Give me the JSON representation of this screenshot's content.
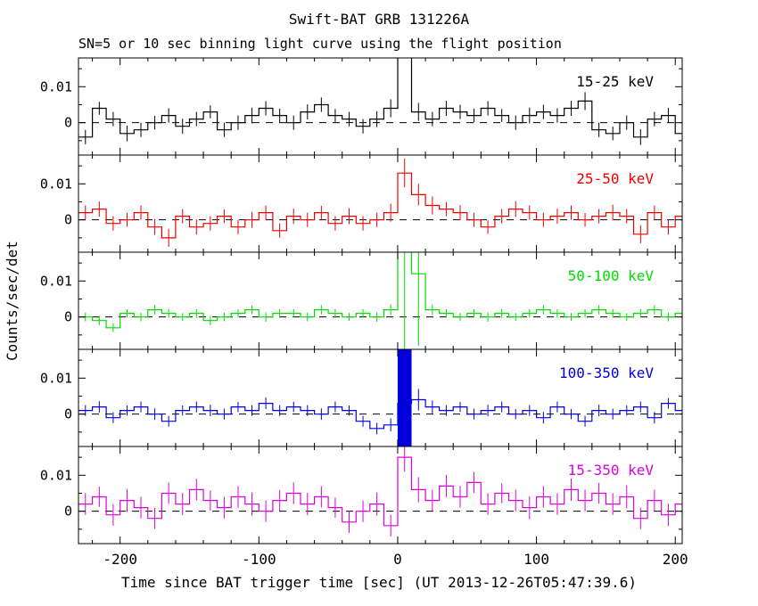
{
  "chart_data": {
    "type": "line",
    "style": "step-histogram light curves with error bars, 5 stacked panels",
    "title": "Swift-BAT GRB 131226A",
    "subtitle": "SN=5 or 10 sec binning light curve using the flight position",
    "xlabel": "Time since BAT trigger time [sec] (UT 2013-12-26T05:47:39.6)",
    "ylabel": "Counts/sec/det",
    "x_start": -230,
    "bin_width": 10,
    "xlim": [
      -230,
      205
    ],
    "ylim": [
      -0.009,
      0.018
    ],
    "x_major_ticks": [
      -200,
      -100,
      0,
      100,
      200
    ],
    "x_tick_labels": [
      "-200",
      "-100",
      "0",
      "100",
      "200"
    ],
    "x_minor_step": 20,
    "y_major_ticks": [
      0,
      0.01
    ],
    "y_tick_labels": [
      "0",
      "0.01"
    ],
    "y_minor_ticks": [
      -0.005,
      0.005,
      0.015
    ],
    "grid": "off",
    "zero_line": "dashed",
    "panels": [
      {
        "label": "15-25 keV",
        "color": "#000000",
        "values": [
          -0.004,
          0.004,
          0.001,
          -0.003,
          -0.002,
          0.0,
          0.002,
          -0.001,
          0.001,
          0.003,
          -0.002,
          0.0,
          0.002,
          0.004,
          0.002,
          0.0,
          0.003,
          0.005,
          0.002,
          0.001,
          -0.001,
          0.001,
          0.004,
          0.035,
          0.003,
          0.001,
          0.004,
          0.003,
          0.002,
          0.004,
          0.002,
          0.0,
          0.002,
          0.003,
          0.002,
          0.004,
          0.006,
          -0.002,
          -0.003,
          0.0,
          -0.004,
          0.001,
          0.002,
          -0.003
        ],
        "errors": [
          0.002,
          0.0018,
          0.002,
          0.0022,
          0.002,
          0.0019,
          0.002,
          0.0021,
          0.002,
          0.0018,
          0.002,
          0.002,
          0.0022,
          0.002,
          0.0019,
          0.002,
          0.0021,
          0.002,
          0.0018,
          0.002,
          0.002,
          0.0022,
          0.0025,
          0.006,
          0.0025,
          0.002,
          0.0021,
          0.002,
          0.0019,
          0.002,
          0.0018,
          0.002,
          0.0022,
          0.002,
          0.002,
          0.0021,
          0.0025,
          0.002,
          0.0019,
          0.002,
          0.0022,
          0.002,
          0.0021,
          0.002
        ]
      },
      {
        "label": "25-50 keV",
        "color": "#ee0000",
        "values": [
          0.002,
          0.003,
          -0.001,
          0.0,
          0.002,
          -0.002,
          -0.005,
          0.001,
          -0.002,
          -0.001,
          0.001,
          -0.002,
          0.0,
          0.002,
          -0.003,
          0.001,
          0.0,
          0.002,
          -0.001,
          0.001,
          -0.001,
          0.0,
          0.002,
          0.013,
          0.007,
          0.004,
          0.003,
          0.002,
          0.0,
          -0.002,
          0.001,
          0.003,
          0.002,
          0.0,
          0.001,
          0.002,
          0.0,
          0.001,
          0.002,
          0.001,
          -0.004,
          0.002,
          -0.002,
          0.001
        ],
        "errors": [
          0.002,
          0.0021,
          0.002,
          0.0019,
          0.002,
          0.0022,
          0.0025,
          0.002,
          0.0021,
          0.002,
          0.0019,
          0.002,
          0.0022,
          0.002,
          0.002,
          0.0021,
          0.002,
          0.0019,
          0.002,
          0.0022,
          0.002,
          0.002,
          0.0025,
          0.004,
          0.003,
          0.0025,
          0.002,
          0.0021,
          0.002,
          0.0019,
          0.002,
          0.0022,
          0.002,
          0.002,
          0.0021,
          0.002,
          0.0019,
          0.002,
          0.0022,
          0.002,
          0.0025,
          0.002,
          0.0021,
          0.002
        ]
      },
      {
        "label": "50-100 keV",
        "color": "#00dd00",
        "values": [
          0.0,
          -0.001,
          -0.003,
          0.001,
          0.0,
          0.002,
          0.001,
          0.0,
          0.001,
          -0.001,
          0.0,
          0.001,
          0.002,
          0.0,
          0.001,
          0.001,
          0.0,
          0.002,
          0.001,
          0.0,
          0.001,
          0.0,
          0.002,
          0.03,
          0.012,
          0.002,
          0.001,
          0.0,
          0.001,
          0.0,
          0.001,
          0.0,
          0.001,
          0.002,
          0.001,
          0.0,
          0.001,
          0.002,
          0.001,
          0.0,
          0.001,
          0.002,
          0.0,
          0.001
        ],
        "errors": [
          0.0012,
          0.0013,
          0.0012,
          0.0011,
          0.0012,
          0.0013,
          0.0012,
          0.0011,
          0.0012,
          0.0013,
          0.0012,
          0.0011,
          0.0012,
          0.0013,
          0.0012,
          0.0011,
          0.0012,
          0.0013,
          0.0012,
          0.0011,
          0.0012,
          0.0013,
          0.0015,
          0.04,
          0.02,
          0.0015,
          0.0012,
          0.0011,
          0.0012,
          0.0013,
          0.0012,
          0.0011,
          0.0012,
          0.0013,
          0.0012,
          0.0011,
          0.0012,
          0.0013,
          0.0012,
          0.0011,
          0.0012,
          0.0013,
          0.0012,
          0.0012
        ]
      },
      {
        "label": "100-350 keV",
        "color": "#0000dd",
        "values": [
          0.001,
          0.002,
          -0.001,
          0.001,
          0.002,
          0.0,
          -0.002,
          0.001,
          0.002,
          0.001,
          0.0,
          0.002,
          0.001,
          0.003,
          0.001,
          0.002,
          0.001,
          0.0,
          0.002,
          0.001,
          -0.002,
          -0.004,
          -0.003,
          0.003,
          0.004,
          0.002,
          0.001,
          0.002,
          0.0,
          0.001,
          0.002,
          0.0,
          0.001,
          -0.001,
          0.002,
          0.0,
          -0.002,
          0.001,
          0.0,
          0.001,
          0.002,
          -0.001,
          0.003,
          0.001
        ],
        "errors": [
          0.0015,
          0.0016,
          0.0015,
          0.0014,
          0.0015,
          0.0016,
          0.0015,
          0.0014,
          0.0015,
          0.0016,
          0.0015,
          0.0014,
          0.0015,
          0.0016,
          0.0015,
          0.0014,
          0.0015,
          0.0016,
          0.0015,
          0.0014,
          0.0015,
          0.0016,
          0.0018,
          0.05,
          0.003,
          0.0018,
          0.0015,
          0.0014,
          0.0015,
          0.0016,
          0.0015,
          0.0014,
          0.0015,
          0.0016,
          0.0015,
          0.0014,
          0.0015,
          0.0016,
          0.0015,
          0.0014,
          0.0015,
          0.0016,
          0.0015,
          0.0015
        ]
      },
      {
        "label": "15-350 keV",
        "color": "#dd00dd",
        "values": [
          0.002,
          0.004,
          -0.001,
          0.003,
          0.001,
          -0.002,
          0.005,
          0.002,
          0.006,
          0.003,
          0.001,
          0.004,
          0.002,
          0.0,
          0.003,
          0.005,
          0.002,
          0.004,
          0.001,
          -0.003,
          0.0,
          0.002,
          -0.004,
          0.015,
          0.006,
          0.003,
          0.007,
          0.004,
          0.008,
          0.002,
          0.005,
          0.003,
          0.001,
          0.004,
          0.002,
          0.006,
          0.003,
          0.005,
          0.002,
          0.004,
          -0.002,
          0.003,
          -0.001,
          0.002
        ],
        "errors": [
          0.003,
          0.0028,
          0.003,
          0.0032,
          0.003,
          0.0029,
          0.003,
          0.0031,
          0.003,
          0.0028,
          0.003,
          0.003,
          0.0032,
          0.003,
          0.0029,
          0.003,
          0.0031,
          0.003,
          0.0028,
          0.003,
          0.003,
          0.0032,
          0.003,
          0.004,
          0.0035,
          0.003,
          0.0031,
          0.003,
          0.0029,
          0.003,
          0.0028,
          0.003,
          0.0032,
          0.003,
          0.003,
          0.0031,
          0.003,
          0.0029,
          0.003,
          0.0032,
          0.003,
          0.003,
          0.0031,
          0.003
        ]
      }
    ]
  }
}
